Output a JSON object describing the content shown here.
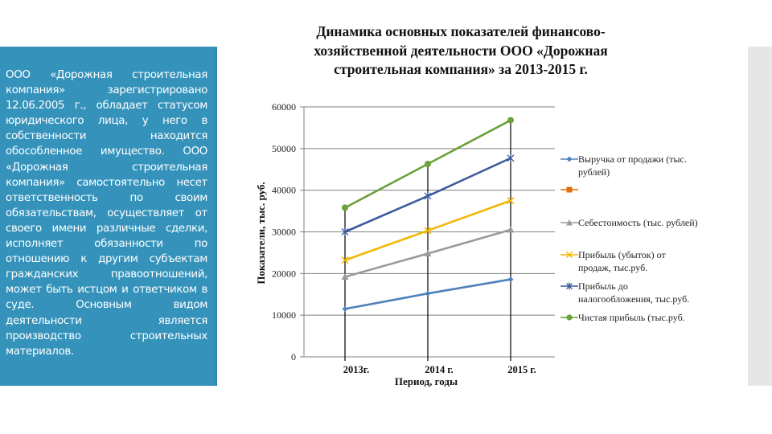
{
  "panel": {
    "text": "ООО «Дорожная строительная компания» зарегистрировано 12.06.2005 г., обладает статусом юридического лица, у него в собственности находится обособленное имущество. ООО «Дорожная строительная компания» самостоятельно несет ответственность по своим обязательствам, осуществляет от своего имени различные сделки, исполняет обязанности по отношению к другим субъектам гражданских правоотношений, может быть истцом и ответчиком в суде. Основным видом деятельности является производство строительных материалов.",
    "background": "#3593bb"
  },
  "chart_data": {
    "type": "line",
    "title": "Динамика основных показателей финансово-хозяйственной деятельности ООО «Дорожная строительная компания» за 2013-2015 г.",
    "xlabel": "Период, годы",
    "ylabel": "Показатели, тыс. руб.",
    "categories": [
      "2013г.",
      "2014 г.",
      "2015 г."
    ],
    "ylim": [
      0,
      60000
    ],
    "yticks": [
      "0",
      "10000",
      "20000",
      "30000",
      "40000",
      "50000",
      "60000"
    ],
    "grid": true,
    "legend_position": "right",
    "series": [
      {
        "name": "Выручка от продажи (тыс. рублей)",
        "values": [
          11500,
          15200,
          18600
        ],
        "color": "#4f81bd",
        "marker": "diamond"
      },
      {
        "name": "",
        "values": [],
        "color": "#e46c0a",
        "marker": "square"
      },
      {
        "name": "Себестоимость (тыс. рублей)",
        "values": [
          19200,
          24800,
          30500
        ],
        "color": "#9a9a9a",
        "marker": "triangle"
      },
      {
        "name": "Прибыль (убыток) от продаж, тыс.руб.",
        "values": [
          23200,
          30300,
          37500
        ],
        "color": "#f2b705",
        "marker": "x"
      },
      {
        "name": "Прибыль до налогообложения, тыс.руб.",
        "values": [
          30000,
          38600,
          47700
        ],
        "color": "#3d5a9e",
        "marker": "star"
      },
      {
        "name": "Чистая прибыль (тыс.руб.",
        "values": [
          35800,
          46300,
          56800
        ],
        "color": "#6aa13a",
        "marker": "circle"
      }
    ]
  },
  "legend": {
    "items": [
      {
        "line1": "Выручка от  продажи (тыс.",
        "line2": "рублей)"
      },
      {
        "line1": "",
        "line2": ""
      },
      {
        "line1": "Себестоимость (тыс. рублей)",
        "line2": ""
      },
      {
        "line1": "Прибыль (убыток) от",
        "line2": "продаж, тыс.руб."
      },
      {
        "line1": "Прибыль до",
        "line2": "налогообложения, тыс.руб."
      },
      {
        "line1": "Чистая прибыль (тыс.руб.",
        "line2": ""
      }
    ]
  }
}
